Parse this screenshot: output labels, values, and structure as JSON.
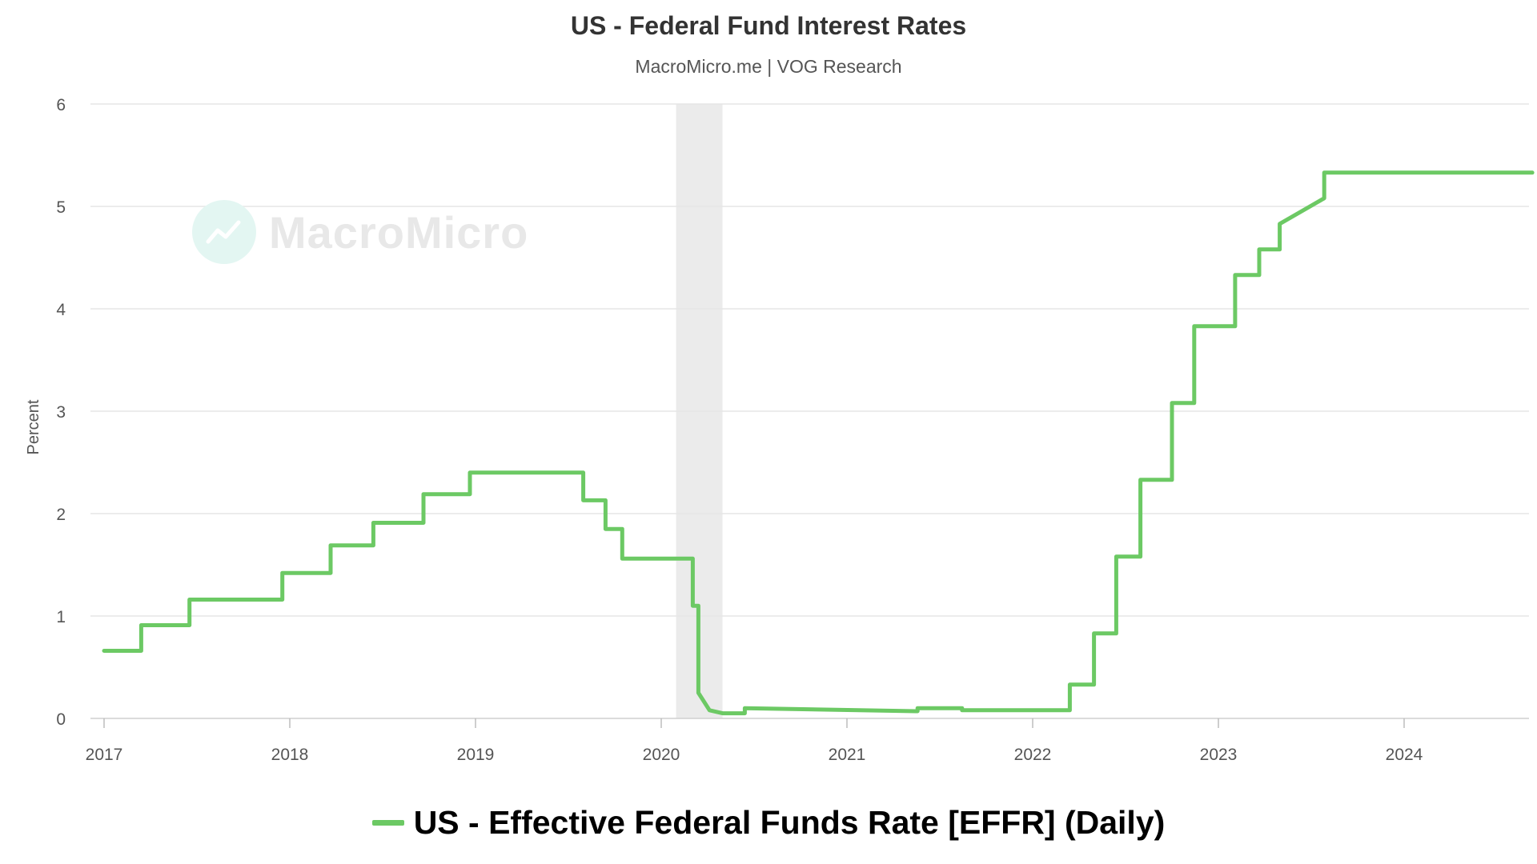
{
  "header": {
    "title": "US - Federal Fund Interest Rates",
    "subtitle": "MacroMicro.me | VOG Research"
  },
  "watermark": {
    "text": "MacroMicro",
    "icon": "chart-trend-icon"
  },
  "colors": {
    "series": "#6cc964",
    "grid": "#e6e6e6",
    "recession": "#ebebeb"
  },
  "chart_data": {
    "type": "line",
    "title": "US - Federal Fund Interest Rates",
    "subtitle": "MacroMicro.me | VOG Research",
    "xlabel": "",
    "ylabel": "Percent",
    "ylim": [
      0,
      6
    ],
    "xlim": [
      2017.0,
      2024.77
    ],
    "yticks": [
      0,
      1,
      2,
      3,
      4,
      5,
      6
    ],
    "xticks": [
      2017,
      2018,
      2019,
      2020,
      2021,
      2022,
      2023,
      2024
    ],
    "grid": true,
    "legend": "bottom",
    "shaded_regions": [
      {
        "from": 2020.08,
        "to": 2020.33
      }
    ],
    "series": [
      {
        "name": "US - Effective Federal Funds Rate [EFFR] (Daily)",
        "color": "#6cc964",
        "x": [
          2017.0,
          2017.2,
          2017.2,
          2017.46,
          2017.46,
          2017.96,
          2017.96,
          2018.22,
          2018.22,
          2018.45,
          2018.45,
          2018.72,
          2018.72,
          2018.97,
          2018.97,
          2019.58,
          2019.58,
          2019.7,
          2019.7,
          2019.79,
          2019.79,
          2020.17,
          2020.17,
          2020.2,
          2020.2,
          2020.26,
          2020.33,
          2020.45,
          2020.45,
          2021.38,
          2021.38,
          2021.62,
          2021.62,
          2022.2,
          2022.2,
          2022.33,
          2022.33,
          2022.45,
          2022.45,
          2022.58,
          2022.58,
          2022.75,
          2022.75,
          2022.87,
          2022.87,
          2023.09,
          2023.09,
          2023.22,
          2023.22,
          2023.33,
          2023.33,
          2023.57,
          2023.57,
          2024.69
        ],
        "values": [
          0.66,
          0.66,
          0.91,
          0.91,
          1.16,
          1.16,
          1.42,
          1.42,
          1.69,
          1.69,
          1.91,
          1.91,
          2.19,
          2.19,
          2.4,
          2.4,
          2.13,
          2.13,
          1.85,
          1.85,
          1.56,
          1.56,
          1.1,
          1.1,
          0.25,
          0.08,
          0.05,
          0.05,
          0.1,
          0.07,
          0.1,
          0.1,
          0.08,
          0.08,
          0.33,
          0.33,
          0.83,
          0.83,
          1.58,
          1.58,
          2.33,
          2.33,
          3.08,
          3.08,
          3.83,
          3.83,
          4.33,
          4.33,
          4.58,
          4.58,
          4.83,
          5.08,
          5.33,
          5.33
        ]
      }
    ]
  }
}
